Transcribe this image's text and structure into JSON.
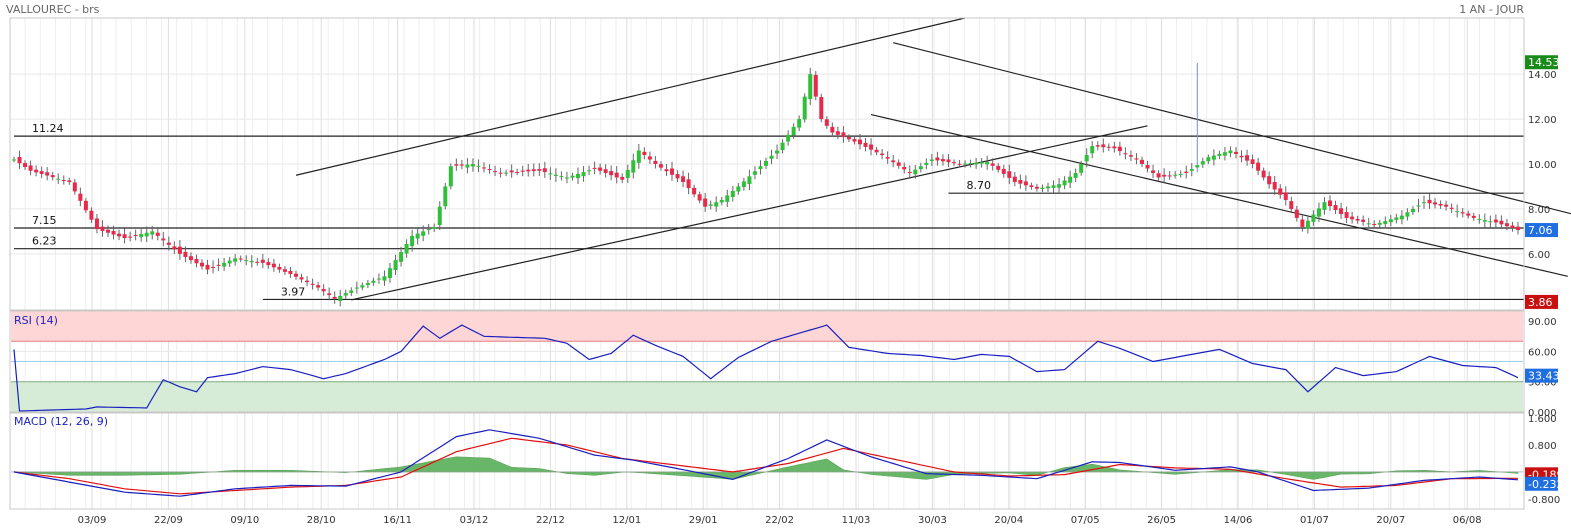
{
  "header": {
    "title": "VALLOUREC - brs",
    "period": "1 AN - JOUR"
  },
  "colors": {
    "up": "#2fbf3a",
    "down": "#e8294a",
    "rsi_line": "#1a1fc0",
    "macd_line": "#1a1fc0",
    "signal_line": "#e01010",
    "hist_fill": "#58b058",
    "overbought_zone": "#ffd6d6",
    "oversold_zone": "#d6ecd6",
    "badge_last": "#1f6fe0",
    "badge_high": "#1a8a1a",
    "badge_low": "#c81010"
  },
  "chart_data": [
    {
      "type": "candlestick",
      "name": "price",
      "x_labels": [
        "03/09",
        "22/09",
        "09/10",
        "28/10",
        "16/11",
        "03/12",
        "22/12",
        "12/01",
        "29/01",
        "22/02",
        "11/03",
        "30/03",
        "20/04",
        "07/05",
        "26/05",
        "14/06",
        "01/07",
        "20/07",
        "06/08"
      ],
      "y_ticks": [
        "6.00",
        "8.00",
        "10.00",
        "12.00",
        "14.00"
      ],
      "ylim": [
        3.5,
        16.5
      ],
      "anchors": [
        {
          "i": 0,
          "v": 10.2
        },
        {
          "i": 3,
          "v": 9.7
        },
        {
          "i": 10,
          "v": 9.2
        },
        {
          "i": 15,
          "v": 7.1
        },
        {
          "i": 20,
          "v": 6.7
        },
        {
          "i": 25,
          "v": 7.0
        },
        {
          "i": 30,
          "v": 6.0
        },
        {
          "i": 35,
          "v": 5.3
        },
        {
          "i": 40,
          "v": 5.8
        },
        {
          "i": 45,
          "v": 5.6
        },
        {
          "i": 50,
          "v": 5.1
        },
        {
          "i": 55,
          "v": 4.5
        },
        {
          "i": 58,
          "v": 4.0
        },
        {
          "i": 62,
          "v": 4.5
        },
        {
          "i": 67,
          "v": 5.0
        },
        {
          "i": 72,
          "v": 6.8
        },
        {
          "i": 76,
          "v": 7.2
        },
        {
          "i": 79,
          "v": 9.9
        },
        {
          "i": 83,
          "v": 10.0
        },
        {
          "i": 88,
          "v": 9.6
        },
        {
          "i": 95,
          "v": 9.7
        },
        {
          "i": 100,
          "v": 9.4
        },
        {
          "i": 105,
          "v": 9.8
        },
        {
          "i": 110,
          "v": 9.3
        },
        {
          "i": 113,
          "v": 10.6
        },
        {
          "i": 116,
          "v": 10.0
        },
        {
          "i": 121,
          "v": 9.2
        },
        {
          "i": 125,
          "v": 8.1
        },
        {
          "i": 128,
          "v": 8.4
        },
        {
          "i": 131,
          "v": 9.0
        },
        {
          "i": 135,
          "v": 9.9
        },
        {
          "i": 138,
          "v": 10.6
        },
        {
          "i": 142,
          "v": 12.0
        },
        {
          "i": 144,
          "v": 14.0
        },
        {
          "i": 146,
          "v": 12.0
        },
        {
          "i": 148,
          "v": 11.4
        },
        {
          "i": 152,
          "v": 11.0
        },
        {
          "i": 157,
          "v": 10.4
        },
        {
          "i": 162,
          "v": 9.6
        },
        {
          "i": 166,
          "v": 10.2
        },
        {
          "i": 171,
          "v": 10.0
        },
        {
          "i": 176,
          "v": 10.1
        },
        {
          "i": 181,
          "v": 9.2
        },
        {
          "i": 185,
          "v": 8.9
        },
        {
          "i": 189,
          "v": 9.1
        },
        {
          "i": 192,
          "v": 9.6
        },
        {
          "i": 195,
          "v": 10.8
        },
        {
          "i": 199,
          "v": 10.7
        },
        {
          "i": 203,
          "v": 10.2
        },
        {
          "i": 207,
          "v": 9.4
        },
        {
          "i": 212,
          "v": 9.6
        },
        {
          "i": 216,
          "v": 10.3
        },
        {
          "i": 220,
          "v": 10.6
        },
        {
          "i": 224,
          "v": 10.0
        },
        {
          "i": 227,
          "v": 9.1
        },
        {
          "i": 230,
          "v": 8.4
        },
        {
          "i": 233,
          "v": 7.2
        },
        {
          "i": 237,
          "v": 8.3
        },
        {
          "i": 241,
          "v": 7.6
        },
        {
          "i": 246,
          "v": 7.3
        },
        {
          "i": 251,
          "v": 7.7
        },
        {
          "i": 255,
          "v": 8.3
        },
        {
          "i": 259,
          "v": 8.1
        },
        {
          "i": 264,
          "v": 7.6
        },
        {
          "i": 268,
          "v": 7.4
        },
        {
          "i": 272,
          "v": 7.06
        }
      ],
      "spikes": [
        {
          "i": 214,
          "high": 14.5
        }
      ],
      "horizontal_levels": [
        {
          "value": 11.24,
          "label": "11.24",
          "from_index": 0
        },
        {
          "value": 8.7,
          "label": "8.70",
          "from_index": 169
        },
        {
          "value": 7.15,
          "label": "7.15",
          "from_index": 0
        },
        {
          "value": 6.23,
          "label": "6.23",
          "from_index": 0
        },
        {
          "value": 3.97,
          "label": "3.97",
          "from_index": 45
        }
      ],
      "trend_lines": [
        {
          "x1": 51,
          "y1": 9.5,
          "x2": 172,
          "y2": 16.5
        },
        {
          "x1": 61,
          "y1": 3.95,
          "x2": 205,
          "y2": 11.7
        },
        {
          "x1": 159,
          "y1": 15.4,
          "x2": 283,
          "y2": 7.7
        },
        {
          "x1": 155,
          "y1": 12.2,
          "x2": 281,
          "y2": 5.0
        }
      ],
      "last_value": "7.06",
      "high_value": "14.53",
      "low_value": "3.86"
    },
    {
      "type": "line",
      "name": "RSI",
      "label": "RSI (14)",
      "y_ticks": [
        "0.000",
        "30.00",
        "60.00",
        "90.00"
      ],
      "ylim": [
        0,
        100
      ],
      "zones": [
        {
          "from": 70,
          "to": 100
        },
        {
          "from": 0,
          "to": 30
        }
      ],
      "anchors": [
        {
          "i": 0,
          "v": 62
        },
        {
          "i": 1,
          "v": 1
        },
        {
          "i": 13,
          "v": 3
        },
        {
          "i": 15,
          "v": 5
        },
        {
          "i": 24,
          "v": 4
        },
        {
          "i": 27,
          "v": 32
        },
        {
          "i": 30,
          "v": 25
        },
        {
          "i": 33,
          "v": 20
        },
        {
          "i": 35,
          "v": 34
        },
        {
          "i": 40,
          "v": 38
        },
        {
          "i": 45,
          "v": 45
        },
        {
          "i": 50,
          "v": 42
        },
        {
          "i": 56,
          "v": 33
        },
        {
          "i": 60,
          "v": 38
        },
        {
          "i": 63,
          "v": 44
        },
        {
          "i": 67,
          "v": 52
        },
        {
          "i": 70,
          "v": 60
        },
        {
          "i": 74,
          "v": 85
        },
        {
          "i": 77,
          "v": 73
        },
        {
          "i": 81,
          "v": 86
        },
        {
          "i": 85,
          "v": 75
        },
        {
          "i": 90,
          "v": 74
        },
        {
          "i": 96,
          "v": 73
        },
        {
          "i": 100,
          "v": 68
        },
        {
          "i": 104,
          "v": 52
        },
        {
          "i": 108,
          "v": 58
        },
        {
          "i": 112,
          "v": 76
        },
        {
          "i": 116,
          "v": 66
        },
        {
          "i": 121,
          "v": 55
        },
        {
          "i": 126,
          "v": 33
        },
        {
          "i": 131,
          "v": 54
        },
        {
          "i": 137,
          "v": 70
        },
        {
          "i": 142,
          "v": 78
        },
        {
          "i": 147,
          "v": 86
        },
        {
          "i": 151,
          "v": 64
        },
        {
          "i": 158,
          "v": 58
        },
        {
          "i": 164,
          "v": 56
        },
        {
          "i": 170,
          "v": 52
        },
        {
          "i": 175,
          "v": 57
        },
        {
          "i": 180,
          "v": 55
        },
        {
          "i": 185,
          "v": 40
        },
        {
          "i": 190,
          "v": 42
        },
        {
          "i": 196,
          "v": 70
        },
        {
          "i": 200,
          "v": 63
        },
        {
          "i": 206,
          "v": 50
        },
        {
          "i": 212,
          "v": 56
        },
        {
          "i": 218,
          "v": 62
        },
        {
          "i": 224,
          "v": 48
        },
        {
          "i": 230,
          "v": 42
        },
        {
          "i": 234,
          "v": 20
        },
        {
          "i": 239,
          "v": 44
        },
        {
          "i": 244,
          "v": 36
        },
        {
          "i": 250,
          "v": 40
        },
        {
          "i": 256,
          "v": 55
        },
        {
          "i": 262,
          "v": 46
        },
        {
          "i": 268,
          "v": 44
        },
        {
          "i": 272,
          "v": 34
        }
      ],
      "last_value": "33.43"
    },
    {
      "type": "line",
      "name": "MACD",
      "label": "MACD (12, 26, 9)",
      "y_ticks": [
        "1.600",
        "0.800",
        "-0.800"
      ],
      "ylim": [
        -1.1,
        1.75
      ],
      "macd_anchors": [
        {
          "i": 0,
          "v": 0.0
        },
        {
          "i": 10,
          "v": -0.3
        },
        {
          "i": 20,
          "v": -0.6
        },
        {
          "i": 30,
          "v": -0.72
        },
        {
          "i": 40,
          "v": -0.5
        },
        {
          "i": 50,
          "v": -0.4
        },
        {
          "i": 60,
          "v": -0.42
        },
        {
          "i": 70,
          "v": 0.0
        },
        {
          "i": 80,
          "v": 1.05
        },
        {
          "i": 86,
          "v": 1.25
        },
        {
          "i": 95,
          "v": 1.0
        },
        {
          "i": 105,
          "v": 0.5
        },
        {
          "i": 112,
          "v": 0.35
        },
        {
          "i": 120,
          "v": 0.1
        },
        {
          "i": 130,
          "v": -0.22
        },
        {
          "i": 140,
          "v": 0.4
        },
        {
          "i": 147,
          "v": 0.95
        },
        {
          "i": 155,
          "v": 0.45
        },
        {
          "i": 165,
          "v": -0.05
        },
        {
          "i": 175,
          "v": -0.1
        },
        {
          "i": 185,
          "v": -0.2
        },
        {
          "i": 195,
          "v": 0.3
        },
        {
          "i": 200,
          "v": 0.28
        },
        {
          "i": 210,
          "v": 0.05
        },
        {
          "i": 220,
          "v": 0.15
        },
        {
          "i": 225,
          "v": 0.0
        },
        {
          "i": 235,
          "v": -0.55
        },
        {
          "i": 245,
          "v": -0.48
        },
        {
          "i": 255,
          "v": -0.25
        },
        {
          "i": 265,
          "v": -0.15
        },
        {
          "i": 272,
          "v": -0.232
        }
      ],
      "signal_anchors": [
        {
          "i": 0,
          "v": 0.0
        },
        {
          "i": 10,
          "v": -0.2
        },
        {
          "i": 20,
          "v": -0.5
        },
        {
          "i": 30,
          "v": -0.65
        },
        {
          "i": 40,
          "v": -0.55
        },
        {
          "i": 50,
          "v": -0.45
        },
        {
          "i": 60,
          "v": -0.4
        },
        {
          "i": 70,
          "v": -0.15
        },
        {
          "i": 80,
          "v": 0.6
        },
        {
          "i": 90,
          "v": 1.0
        },
        {
          "i": 100,
          "v": 0.8
        },
        {
          "i": 110,
          "v": 0.4
        },
        {
          "i": 120,
          "v": 0.2
        },
        {
          "i": 130,
          "v": 0.0
        },
        {
          "i": 140,
          "v": 0.25
        },
        {
          "i": 150,
          "v": 0.7
        },
        {
          "i": 160,
          "v": 0.35
        },
        {
          "i": 170,
          "v": 0.0
        },
        {
          "i": 180,
          "v": -0.12
        },
        {
          "i": 190,
          "v": -0.08
        },
        {
          "i": 200,
          "v": 0.22
        },
        {
          "i": 210,
          "v": 0.12
        },
        {
          "i": 220,
          "v": 0.08
        },
        {
          "i": 230,
          "v": -0.2
        },
        {
          "i": 240,
          "v": -0.45
        },
        {
          "i": 250,
          "v": -0.4
        },
        {
          "i": 260,
          "v": -0.2
        },
        {
          "i": 272,
          "v": -0.189
        }
      ],
      "macd_last": "-0.232",
      "signal_last": "-0.189"
    }
  ]
}
